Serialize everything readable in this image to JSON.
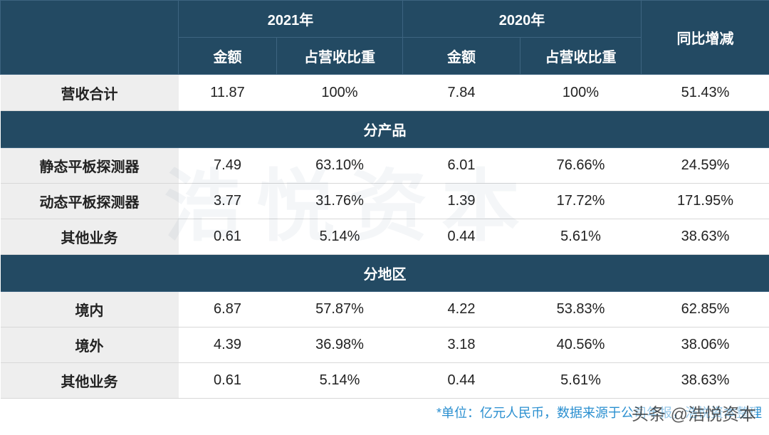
{
  "header": {
    "years": [
      "2021年",
      "2020年"
    ],
    "yoy": "同比增减",
    "sub": [
      "金额",
      "占营收比重",
      "金额",
      "占营收比重"
    ]
  },
  "table": {
    "total": {
      "label": "营收合计",
      "cells": [
        "11.87",
        "100%",
        "7.84",
        "100%",
        "51.43%"
      ]
    },
    "sections": [
      {
        "title": "分产品",
        "rows": [
          {
            "label": "静态平板探测器",
            "cells": [
              "7.49",
              "63.10%",
              "6.01",
              "76.66%",
              "24.59%"
            ]
          },
          {
            "label": "动态平板探测器",
            "cells": [
              "3.77",
              "31.76%",
              "1.39",
              "17.72%",
              "171.95%"
            ]
          },
          {
            "label": "其他业务",
            "cells": [
              "0.61",
              "5.14%",
              "0.44",
              "5.61%",
              "38.63%"
            ]
          }
        ]
      },
      {
        "title": "分地区",
        "rows": [
          {
            "label": "境内",
            "cells": [
              "6.87",
              "57.87%",
              "4.22",
              "53.83%",
              "62.85%"
            ]
          },
          {
            "label": "境外",
            "cells": [
              "4.39",
              "36.98%",
              "3.18",
              "40.56%",
              "38.06%"
            ]
          },
          {
            "label": "其他业务",
            "cells": [
              "0.61",
              "5.14%",
              "0.44",
              "5.61%",
              "38.63%"
            ]
          }
        ]
      }
    ]
  },
  "note": "*单位：亿元人民币，数据来源于公司年报，浩悦资本整理",
  "watermark": "头条 @浩悦资本",
  "background_mark": "浩悦资本"
}
